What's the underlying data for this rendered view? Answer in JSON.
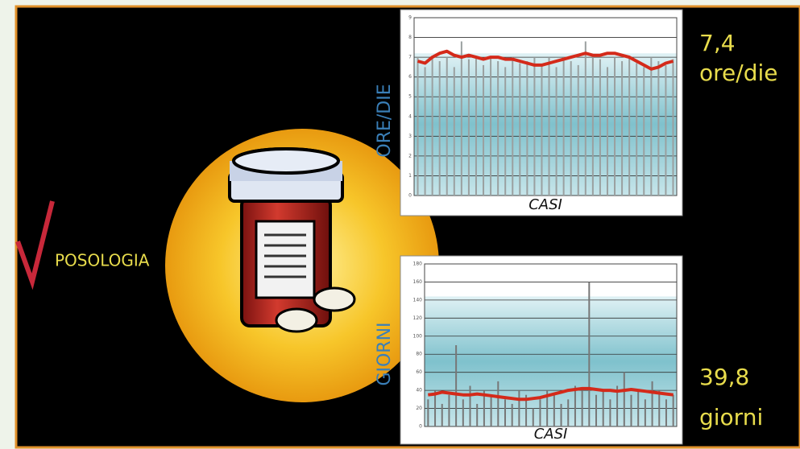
{
  "chart_data": [
    {
      "type": "bar",
      "y_label": "ORE/DIE",
      "x_label": "CASI",
      "annotation_value": "7,4",
      "annotation_unit": "ore/die",
      "ylim": [
        0,
        9
      ],
      "yticks": [
        0,
        1,
        2,
        3,
        4,
        5,
        6,
        7,
        8,
        9
      ],
      "grid": true,
      "series": [
        {
          "type": "bar",
          "color": "#9aa0a0",
          "values": [
            7,
            6.5,
            7,
            6.8,
            7,
            6.5,
            7.8,
            6.9,
            7,
            6.6,
            7,
            6.8,
            6.5,
            7,
            6.7,
            6.8,
            7,
            6.6,
            7,
            6.5,
            7,
            6.8,
            6.6,
            7.8,
            7,
            6.9,
            6.5,
            7,
            6.8,
            7,
            6.7,
            6.5,
            7,
            6.8,
            6.6,
            6.9
          ]
        },
        {
          "type": "line",
          "color": "#d42a1a",
          "values": [
            6.8,
            6.7,
            7.0,
            7.2,
            7.3,
            7.1,
            7.0,
            7.1,
            7.0,
            6.9,
            7.0,
            7.0,
            6.9,
            6.9,
            6.8,
            6.7,
            6.6,
            6.6,
            6.7,
            6.8,
            6.9,
            7.0,
            7.1,
            7.2,
            7.1,
            7.1,
            7.2,
            7.2,
            7.1,
            7.0,
            6.8,
            6.6,
            6.4,
            6.5,
            6.7,
            6.8
          ]
        }
      ]
    },
    {
      "type": "bar",
      "y_label": "GIORNI",
      "x_label": "CASI",
      "annotation_value": "39,8",
      "annotation_unit": "giorni",
      "ylim": [
        0,
        180
      ],
      "yticks": [
        0,
        20,
        40,
        60,
        80,
        100,
        120,
        140,
        160,
        180
      ],
      "grid": true,
      "series": [
        {
          "type": "bar",
          "color": "#777",
          "values": [
            30,
            40,
            25,
            35,
            90,
            30,
            45,
            25,
            40,
            35,
            50,
            30,
            25,
            40,
            35,
            20,
            30,
            40,
            35,
            25,
            30,
            45,
            40,
            160,
            35,
            40,
            30,
            45,
            60,
            35,
            40,
            30,
            50,
            40,
            30,
            35
          ]
        },
        {
          "type": "line",
          "color": "#d42a1a",
          "values": [
            35,
            36,
            38,
            37,
            36,
            35,
            35,
            36,
            35,
            34,
            33,
            32,
            31,
            30,
            30,
            31,
            32,
            34,
            36,
            38,
            40,
            41,
            42,
            42,
            41,
            40,
            40,
            39,
            40,
            41,
            40,
            39,
            38,
            37,
            36,
            35
          ]
        }
      ]
    }
  ]
}
